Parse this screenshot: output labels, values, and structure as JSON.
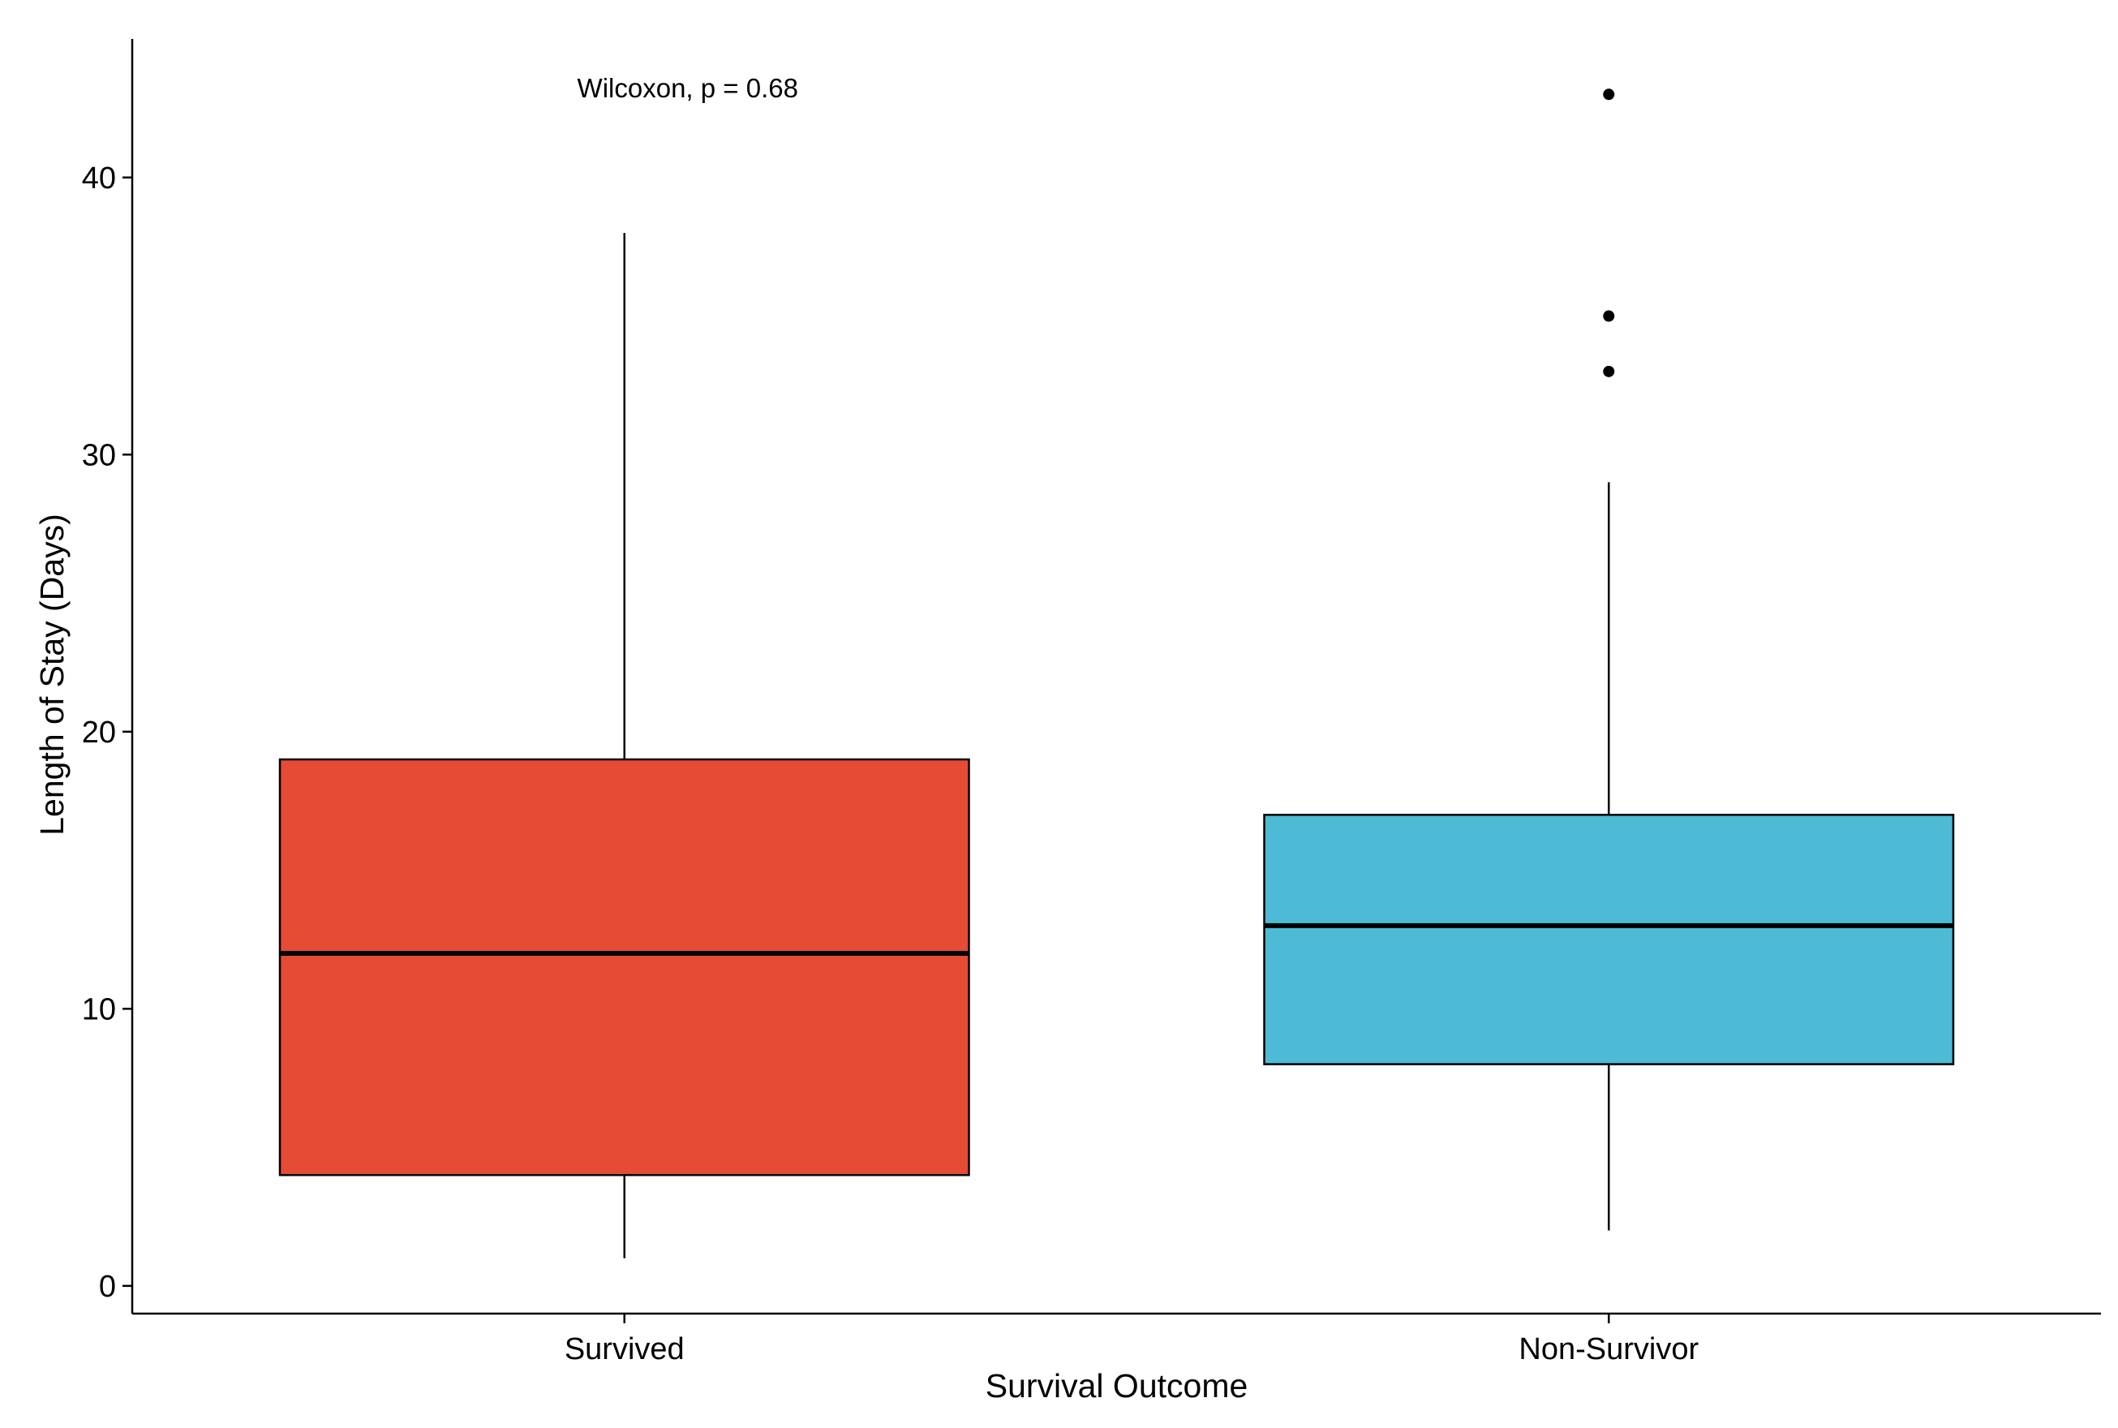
{
  "chart_data": {
    "type": "boxplot",
    "title": "",
    "xlabel": "Survival Outcome",
    "ylabel": "Length of Stay (Days)",
    "ylim": [
      -1,
      45
    ],
    "yticks": [
      0,
      10,
      20,
      30,
      40
    ],
    "grid": false,
    "legend": "none",
    "annotation": "Wilcoxon, p = 0.68",
    "categories": [
      "Survived",
      "Non-Survivor"
    ],
    "boxes": [
      {
        "category": "Survived",
        "whisker_low": 1,
        "q1": 4,
        "median": 12,
        "q3": 19,
        "whisker_high": 38,
        "outliers": [],
        "color": "#E64B35"
      },
      {
        "category": "Non-Survivor",
        "whisker_low": 2,
        "q1": 8,
        "median": 13,
        "q3": 17,
        "whisker_high": 29,
        "outliers": [
          33,
          35,
          43
        ],
        "color": "#4DBBD5"
      }
    ]
  }
}
